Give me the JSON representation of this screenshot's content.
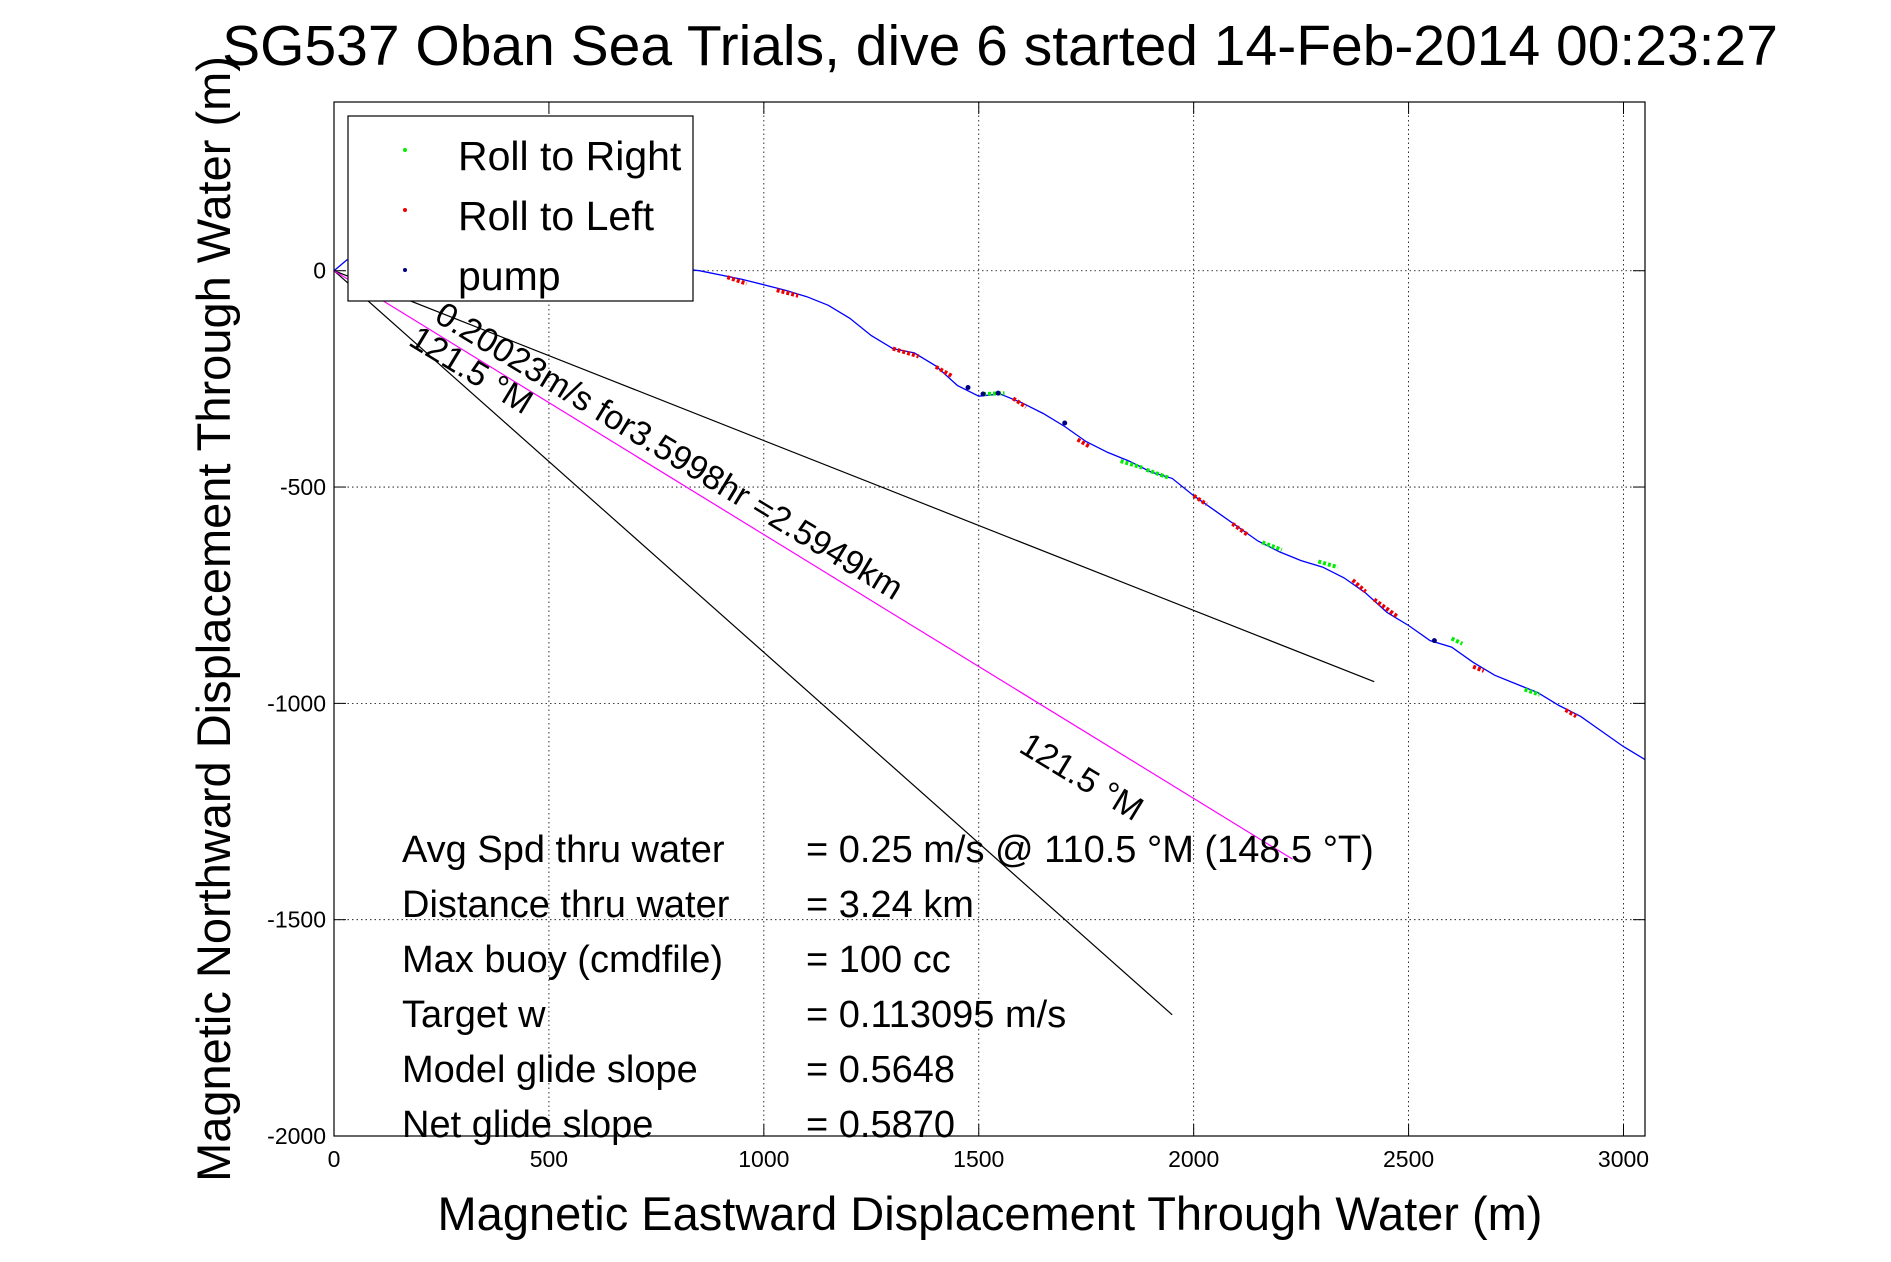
{
  "chart_data": {
    "type": "line",
    "title": "SG537 Oban Sea Trials, dive 6 started 14-Feb-2014 00:23:27",
    "xlabel": "Magnetic Eastward Displacement Through Water (m)",
    "ylabel": "Magnetic Northward Displacement Through Water (m)",
    "xlim": [
      0,
      3050
    ],
    "ylim": [
      -2000,
      390
    ],
    "xticks": [
      0,
      500,
      1000,
      1500,
      2000,
      2500,
      3000
    ],
    "yticks": [
      0,
      -500,
      -1000,
      -1500,
      -2000
    ],
    "grid": true,
    "legend_position": "top-left",
    "legend": [
      {
        "label": "Roll to Right",
        "color": "#00ee00"
      },
      {
        "label": "Roll to Left",
        "color": "#ee0000"
      },
      {
        "label": "pump",
        "color": "#000080"
      }
    ],
    "series": [
      {
        "color": "#0000ff",
        "x": [
          0,
          30,
          80,
          150,
          250,
          350,
          450,
          550,
          650,
          750,
          850,
          950,
          1050,
          1100,
          1150,
          1200,
          1250,
          1300,
          1350,
          1400,
          1450,
          1500,
          1550,
          1600,
          1650,
          1700,
          1750,
          1800,
          1850,
          1900,
          1950,
          2000,
          2050,
          2100,
          2150,
          2200,
          2250,
          2300,
          2350,
          2400,
          2450,
          2500,
          2550,
          2600,
          2650,
          2700,
          2750,
          2800,
          2850,
          2900,
          2950,
          3000,
          3050
        ],
        "y": [
          0,
          25,
          30,
          25,
          20,
          15,
          12,
          20,
          15,
          10,
          0,
          -20,
          -45,
          -60,
          -80,
          -110,
          -150,
          -180,
          -190,
          -220,
          -265,
          -290,
          -285,
          -305,
          -330,
          -360,
          -395,
          -420,
          -440,
          -465,
          -480,
          -520,
          -555,
          -590,
          -625,
          -650,
          -670,
          -685,
          -710,
          -745,
          -790,
          -820,
          -855,
          -870,
          -905,
          -935,
          -955,
          -975,
          -1005,
          -1030,
          -1065,
          -1100,
          -1130
        ]
      }
    ],
    "roll_right_segments": [
      [
        [
          1510,
          -285
        ],
        [
          1560,
          -283
        ]
      ],
      [
        [
          1830,
          -440
        ],
        [
          1880,
          -455
        ]
      ],
      [
        [
          1890,
          -460
        ],
        [
          1940,
          -478
        ]
      ],
      [
        [
          2160,
          -628
        ],
        [
          2205,
          -645
        ]
      ],
      [
        [
          2290,
          -672
        ],
        [
          2335,
          -685
        ]
      ],
      [
        [
          2600,
          -850
        ],
        [
          2625,
          -862
        ]
      ],
      [
        [
          2770,
          -968
        ],
        [
          2805,
          -980
        ]
      ]
    ],
    "roll_left_segments": [
      [
        [
          790,
          2
        ],
        [
          830,
          -3
        ]
      ],
      [
        [
          915,
          -15
        ],
        [
          960,
          -30
        ]
      ],
      [
        [
          1030,
          -45
        ],
        [
          1080,
          -58
        ]
      ],
      [
        [
          1300,
          -180
        ],
        [
          1360,
          -198
        ]
      ],
      [
        [
          1400,
          -222
        ],
        [
          1440,
          -245
        ]
      ],
      [
        [
          1580,
          -295
        ],
        [
          1610,
          -315
        ]
      ],
      [
        [
          1730,
          -390
        ],
        [
          1760,
          -408
        ]
      ],
      [
        [
          2000,
          -520
        ],
        [
          2030,
          -540
        ]
      ],
      [
        [
          2090,
          -585
        ],
        [
          2125,
          -610
        ]
      ],
      [
        [
          2370,
          -715
        ],
        [
          2400,
          -742
        ]
      ],
      [
        [
          2420,
          -760
        ],
        [
          2475,
          -800
        ]
      ],
      [
        [
          2650,
          -915
        ],
        [
          2675,
          -925
        ]
      ],
      [
        [
          2865,
          -1015
        ],
        [
          2890,
          -1030
        ]
      ]
    ],
    "pump_points": [
      [
        1475,
        -270
      ],
      [
        1510,
        -285
      ],
      [
        1545,
        -283
      ],
      [
        1700,
        -352
      ],
      [
        2560,
        -855
      ]
    ],
    "reference_lines": [
      {
        "color": "#000000",
        "x": [
          0,
          2420
        ],
        "y": [
          0,
          -950
        ]
      },
      {
        "color": "#000000",
        "x": [
          0,
          1950
        ],
        "y": [
          0,
          -1720
        ]
      },
      {
        "color": "#ff00ff",
        "x": [
          0,
          2230
        ],
        "y": [
          0,
          -1360
        ]
      }
    ],
    "line_labels": [
      {
        "text": "0.20023m/s for3.5998hr =2.5949km",
        "x": 230,
        "y": -115,
        "angle": 31.3
      },
      {
        "text": "121.5 °M",
        "x": 170,
        "y": -170,
        "angle": 31.3
      },
      {
        "text": "121.5 °M",
        "x": 1590,
        "y": -1110,
        "angle": 31.3
      }
    ],
    "annotations": [
      {
        "label": "Avg Spd thru water",
        "value": "=  0.25 m/s @ 110.5 °M (148.5 °T)"
      },
      {
        "label": "Distance thru water",
        "value": "=  3.24 km"
      },
      {
        "label": "Max buoy (cmdfile)",
        "value": "= 100 cc"
      },
      {
        "label": "Target w",
        "value": "= 0.113095 m/s"
      },
      {
        "label": "Model glide slope",
        "value": "= 0.5648"
      },
      {
        "label": "Net glide slope",
        "value": "= 0.5870"
      }
    ]
  }
}
